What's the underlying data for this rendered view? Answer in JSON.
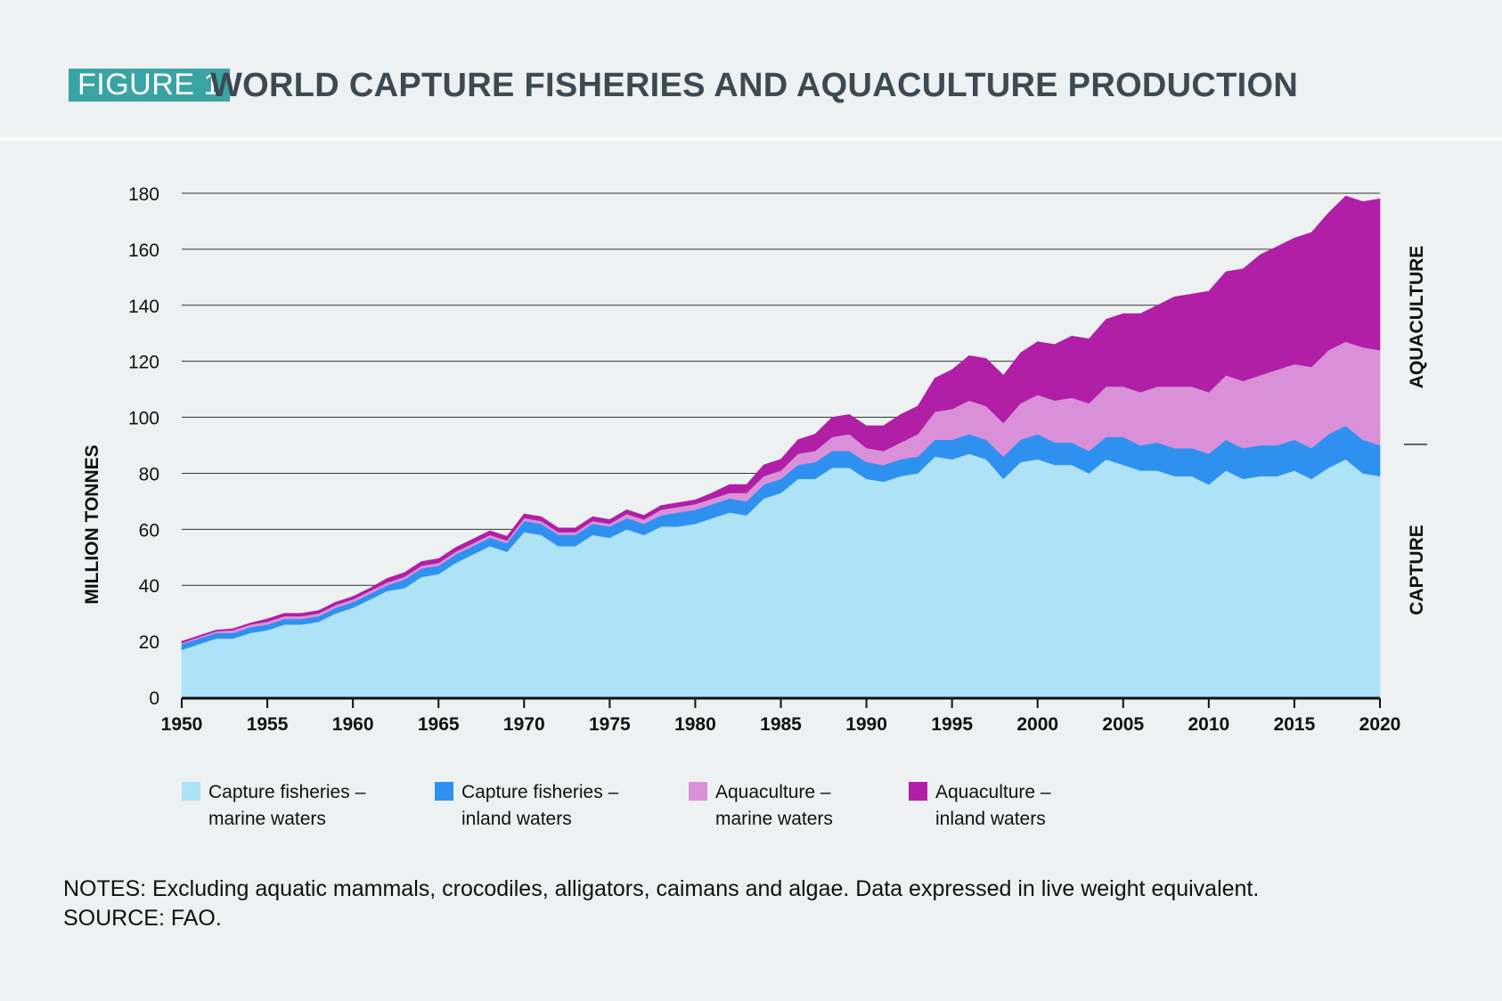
{
  "figure": {
    "label": "FIGURE 1",
    "title": "WORLD CAPTURE FISHERIES AND AQUACULTURE PRODUCTION"
  },
  "colors": {
    "capture_marine": "#aee2f7",
    "capture_inland": "#2e91f0",
    "aqua_marine": "#d990d9",
    "aqua_inland": "#b01fa6",
    "label_bg": "#3aa3a3",
    "title_text": "#3d4a52"
  },
  "chart_data": {
    "type": "area",
    "stacked": true,
    "ylabel": "MILLION TONNES",
    "ylim": [
      0,
      180
    ],
    "yticks": [
      0,
      20,
      40,
      60,
      80,
      100,
      120,
      140,
      160,
      180
    ],
    "xlim": [
      1950,
      2020
    ],
    "xticks": [
      1950,
      1955,
      1960,
      1965,
      1970,
      1975,
      1980,
      1985,
      1990,
      1995,
      2000,
      2005,
      2010,
      2015,
      2020
    ],
    "grid": true,
    "legend_placement": "bottom",
    "side_labels": {
      "upper": "AQUACULTURE",
      "lower": "CAPTURE"
    },
    "x": [
      1950,
      1951,
      1952,
      1953,
      1954,
      1955,
      1956,
      1957,
      1958,
      1959,
      1960,
      1961,
      1962,
      1963,
      1964,
      1965,
      1966,
      1967,
      1968,
      1969,
      1970,
      1971,
      1972,
      1973,
      1974,
      1975,
      1976,
      1977,
      1978,
      1979,
      1980,
      1981,
      1982,
      1983,
      1984,
      1985,
      1986,
      1987,
      1988,
      1989,
      1990,
      1991,
      1992,
      1993,
      1994,
      1995,
      1996,
      1997,
      1998,
      1999,
      2000,
      2001,
      2002,
      2003,
      2004,
      2005,
      2006,
      2007,
      2008,
      2009,
      2010,
      2011,
      2012,
      2013,
      2014,
      2015,
      2016,
      2017,
      2018,
      2019,
      2020
    ],
    "series": [
      {
        "name": "Capture fisheries – marine waters",
        "name_lines": [
          "Capture fisheries –",
          "marine waters"
        ],
        "values": [
          17,
          19,
          21,
          21,
          23,
          24,
          26,
          26,
          27,
          30,
          32,
          35,
          38,
          39,
          43,
          44,
          48,
          51,
          54,
          52,
          59,
          58,
          54,
          54,
          58,
          57,
          60,
          58,
          61,
          61,
          62,
          64,
          66,
          65,
          71,
          73,
          78,
          78,
          82,
          82,
          78,
          77,
          79,
          80,
          86,
          85,
          87,
          85,
          78,
          84,
          85,
          83,
          83,
          80,
          85,
          83,
          81,
          81,
          79,
          79,
          76,
          81,
          78,
          79,
          79,
          81,
          78,
          82,
          85,
          80,
          79
        ]
      },
      {
        "name": "Capture fisheries – inland waters",
        "name_lines": [
          "Capture fisheries –",
          "inland waters"
        ],
        "values": [
          2,
          2,
          2,
          2,
          2,
          2,
          2,
          2,
          2,
          2,
          2,
          2,
          2,
          3,
          3,
          3,
          3,
          3,
          3,
          3,
          4,
          4,
          4,
          4,
          4,
          4,
          4,
          4,
          4,
          5,
          5,
          5,
          5,
          5,
          5,
          5,
          5,
          6,
          6,
          6,
          6,
          6,
          6,
          6,
          6,
          7,
          7,
          7,
          8,
          8,
          9,
          8,
          8,
          8,
          8,
          10,
          9,
          10,
          10,
          10,
          11,
          11,
          11,
          11,
          11,
          11,
          11,
          12,
          12,
          12,
          11
        ]
      },
      {
        "name": "Aquaculture – marine waters",
        "name_lines": [
          "Aquaculture –",
          "marine waters"
        ],
        "values": [
          0.4,
          0.5,
          0.6,
          1,
          1,
          1,
          1,
          1,
          1,
          1,
          1,
          1,
          1,
          1,
          1,
          1,
          1,
          1,
          1,
          1,
          1,
          1,
          1,
          1,
          1,
          1,
          1.5,
          1.5,
          2,
          2,
          2,
          2,
          2,
          3,
          3,
          3,
          4,
          4,
          5,
          6,
          5,
          5,
          6,
          8,
          10,
          11,
          12,
          12,
          12,
          13,
          14,
          15,
          16,
          17,
          18,
          18,
          19,
          20,
          22,
          22,
          22,
          23,
          24,
          25,
          27,
          27,
          29,
          30,
          30,
          33,
          34
        ]
      },
      {
        "name": "Aquaculture – inland waters",
        "name_lines": [
          "Aquaculture –",
          "inland waters"
        ],
        "values": [
          0.6,
          0.5,
          0.4,
          0.5,
          0.5,
          1,
          1,
          1,
          1,
          1,
          1,
          1,
          1.5,
          1.5,
          1.5,
          1.5,
          1.5,
          1.5,
          1.5,
          1.5,
          1.5,
          1.5,
          1.5,
          1.5,
          1.5,
          1.5,
          1.5,
          1.5,
          1.5,
          1.5,
          1.5,
          2,
          3,
          3,
          4,
          4,
          5,
          6,
          7,
          7,
          8,
          9,
          10,
          10,
          12,
          14,
          16,
          17,
          17,
          18,
          19,
          20,
          22,
          23,
          24,
          26,
          28,
          29,
          32,
          33,
          36,
          37,
          40,
          43,
          44,
          45,
          48,
          49,
          52,
          52,
          54
        ]
      }
    ]
  },
  "notes": {
    "line1": "NOTES: Excluding aquatic mammals, crocodiles, alligators, caimans and algae. Data expressed in live weight equivalent.",
    "line2": "SOURCE: FAO."
  }
}
